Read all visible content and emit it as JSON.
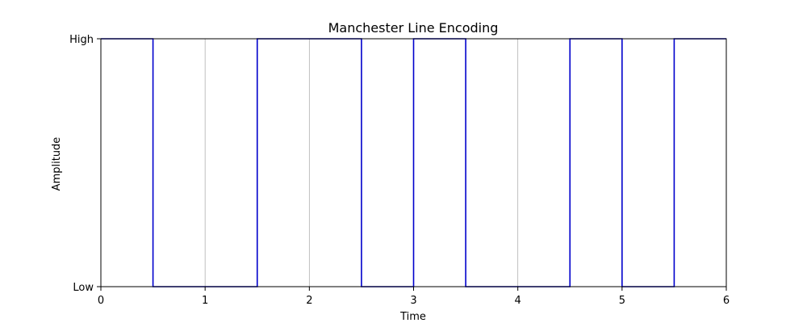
{
  "chart_data": {
    "type": "line",
    "step": "post",
    "title": "Manchester Line Encoding",
    "xlabel": "Time",
    "ylabel": "Amplitude",
    "xlim": [
      0,
      6
    ],
    "ylim": [
      0,
      1
    ],
    "x_ticks": [
      0,
      1,
      2,
      3,
      4,
      5,
      6
    ],
    "x_tick_labels": [
      "0",
      "1",
      "2",
      "3",
      "4",
      "5",
      "6"
    ],
    "y_ticks": [
      0,
      1
    ],
    "y_tick_labels": [
      "Low",
      "High"
    ],
    "grid": "x-only",
    "series": [
      {
        "color": "#0000cc",
        "x": [
          0,
          0.5,
          1.5,
          2.5,
          3,
          3.5,
          4.5,
          5,
          5.5,
          6
        ],
        "y": [
          1,
          0,
          1,
          0,
          1,
          0,
          1,
          0,
          1,
          1
        ]
      }
    ]
  }
}
